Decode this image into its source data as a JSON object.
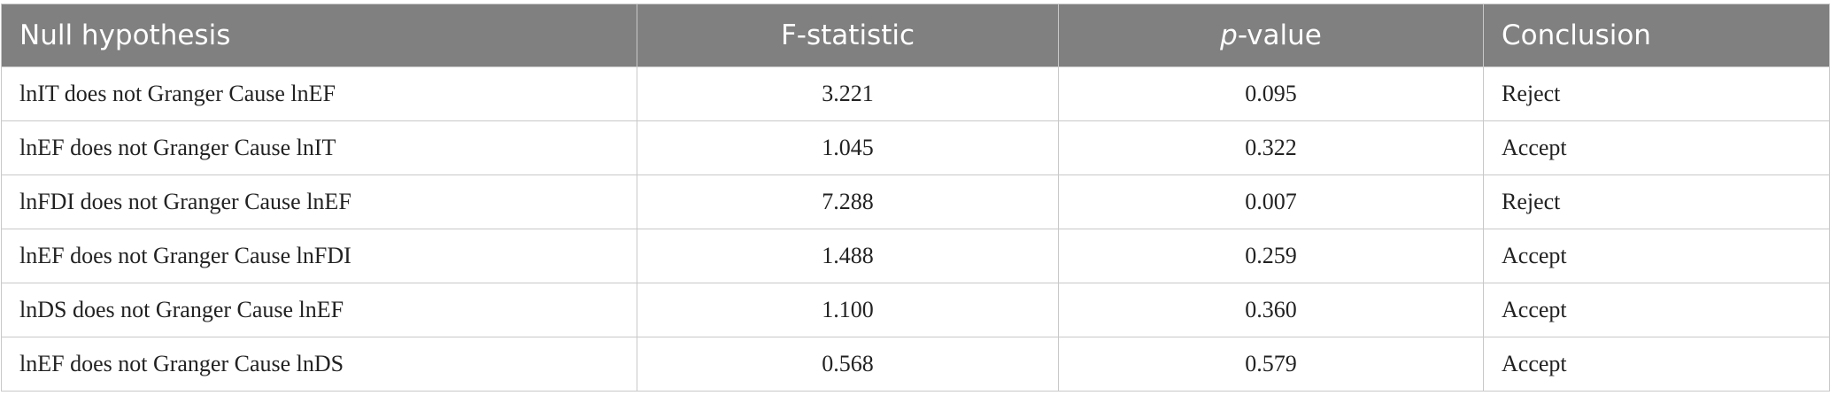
{
  "table": {
    "header": [
      "Null hypothesis",
      "F-statistic",
      "p-value",
      "Conclusion"
    ],
    "rows": [
      [
        "lnIT does not Granger Cause lnEF",
        "3.221",
        "0.095",
        "Reject"
      ],
      [
        "lnEF does not Granger Cause lnIT",
        "1.045",
        "0.322",
        "Accept"
      ],
      [
        "lnFDI does not Granger Cause lnEF",
        "7.288",
        "0.007",
        "Reject"
      ],
      [
        "lnEF does not Granger Cause lnFDI",
        "1.488",
        "0.259",
        "Accept"
      ],
      [
        "lnDS does not Granger Cause lnEF",
        "1.100",
        "0.360",
        "Accept"
      ],
      [
        "lnEF does not Granger Cause lnDS",
        "0.568",
        "0.579",
        "Accept"
      ]
    ]
  }
}
